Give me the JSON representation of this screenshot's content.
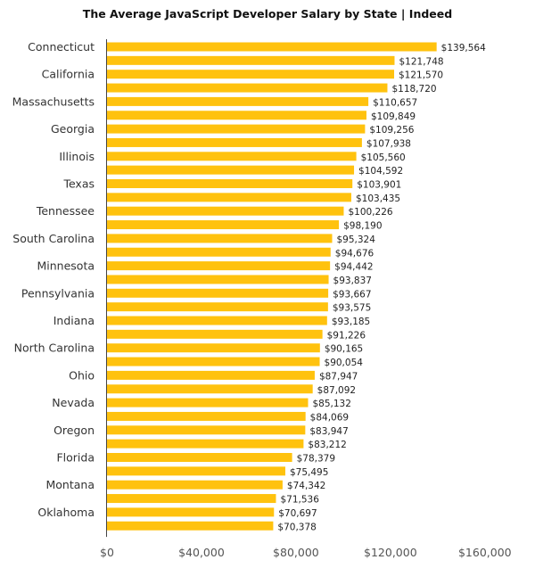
{
  "chart_data": {
    "type": "bar",
    "orientation": "horizontal",
    "title": "The Average JavaScript Developer Salary by State | Indeed",
    "xlabel": "",
    "ylabel": "",
    "xlim": [
      0,
      160000
    ],
    "x_ticks": [
      "$0",
      "$40,000",
      "$80,000",
      "$120,000",
      "$160,000"
    ],
    "x_tick_values": [
      0,
      40000,
      80000,
      120000,
      160000
    ],
    "grid": false,
    "bar_color": "#FFC20E",
    "categories": [
      "Connecticut",
      "",
      "California",
      "",
      "Massachusetts",
      "",
      "Georgia",
      "",
      "Illinois",
      "",
      "Texas",
      "",
      "Tennessee",
      "",
      "South Carolina",
      "",
      "Minnesota",
      "",
      "Pennsylvania",
      "",
      "Indiana",
      "",
      "North Carolina",
      "",
      "Ohio",
      "",
      "Nevada",
      "",
      "Oregon",
      "",
      "Florida",
      "",
      "Montana",
      "",
      "Oklahoma",
      ""
    ],
    "values": [
      139564,
      121748,
      121570,
      118720,
      110657,
      109849,
      109256,
      107938,
      105560,
      104592,
      103901,
      103435,
      100226,
      98190,
      95324,
      94676,
      94442,
      93837,
      93667,
      93575,
      93185,
      91226,
      90165,
      90054,
      87947,
      87092,
      85132,
      84069,
      83947,
      83212,
      78379,
      75495,
      74342,
      71536,
      70697,
      70378
    ],
    "value_labels": [
      "$139,564",
      "$121,748",
      "$121,570",
      "$118,720",
      "$110,657",
      "$109,849",
      "$109,256",
      "$107,938",
      "$105,560",
      "$104,592",
      "$103,901",
      "$103,435",
      "$100,226",
      "$98,190",
      "$95,324",
      "$94,676",
      "$94,442",
      "$93,837",
      "$93,667",
      "$93,575",
      "$93,185",
      "$91,226",
      "$90,165",
      "$90,054",
      "$87,947",
      "$87,092",
      "$85,132",
      "$84,069",
      "$83,947",
      "$83,212",
      "$78,379",
      "$75,495",
      "$74,342",
      "$71,536",
      "$70,697",
      "$70,378"
    ]
  }
}
